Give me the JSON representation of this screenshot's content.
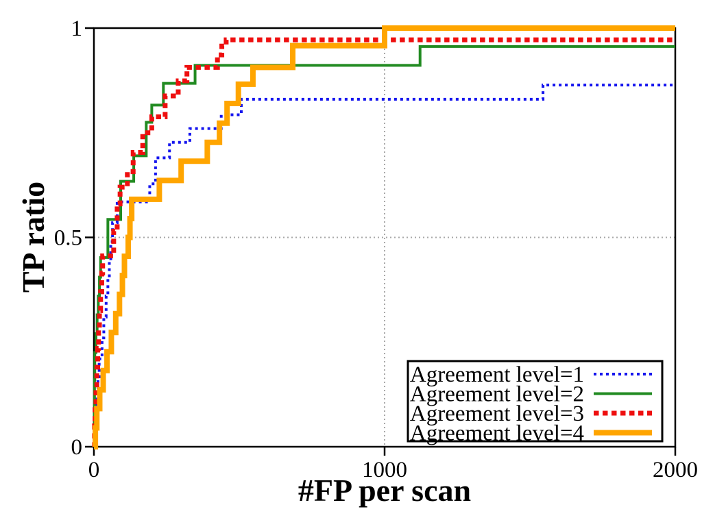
{
  "background": "#ffffff",
  "frame_color": "#000000",
  "grid_color": "#a8a8a8",
  "chart_data": {
    "type": "line",
    "subtype": "step-curves-froc",
    "title": "",
    "xlabel": "#FP per scan",
    "ylabel": "TP ratio",
    "xlim": [
      0,
      2000
    ],
    "ylim": [
      0,
      1
    ],
    "grid": {
      "x_values": [
        1000
      ],
      "y_values": [
        0.5
      ],
      "style": "dotted"
    },
    "xticks": [
      {
        "value": 0,
        "label": "0"
      },
      {
        "value": 1000,
        "label": "1000"
      },
      {
        "value": 2000,
        "label": "2000"
      }
    ],
    "yticks": [
      {
        "value": 0,
        "label": "0"
      },
      {
        "value": 0.5,
        "label": "0.5"
      },
      {
        "value": 1,
        "label": "1"
      }
    ],
    "legend_position": "bottom-right",
    "series": [
      {
        "label": "Agreement level=1",
        "color": "#1515ee",
        "line": "dotted",
        "width": 4,
        "dash": "4 5",
        "steps": [
          [
            0,
            0
          ],
          [
            3,
            0.042
          ],
          [
            6,
            0.083
          ],
          [
            10,
            0.125
          ],
          [
            14,
            0.167
          ],
          [
            18,
            0.21
          ],
          [
            28,
            0.26
          ],
          [
            34,
            0.31
          ],
          [
            42,
            0.36
          ],
          [
            48,
            0.405
          ],
          [
            53,
            0.445
          ],
          [
            58,
            0.49
          ],
          [
            64,
            0.535
          ],
          [
            80,
            0.585
          ],
          [
            192,
            0.628
          ],
          [
            212,
            0.69
          ],
          [
            260,
            0.727
          ],
          [
            330,
            0.76
          ],
          [
            438,
            0.793
          ],
          [
            507,
            0.83
          ],
          [
            1545,
            0.864
          ]
        ]
      },
      {
        "label": "Agreement level=2",
        "color": "#228b22",
        "line": "solid",
        "width": 4,
        "dash": "",
        "steps": [
          [
            0,
            0
          ],
          [
            1,
            0.09
          ],
          [
            2,
            0.16
          ],
          [
            3,
            0.225
          ],
          [
            7,
            0.27
          ],
          [
            11,
            0.315
          ],
          [
            15,
            0.36
          ],
          [
            19,
            0.405
          ],
          [
            23,
            0.452
          ],
          [
            48,
            0.543
          ],
          [
            92,
            0.634
          ],
          [
            137,
            0.695
          ],
          [
            180,
            0.775
          ],
          [
            199,
            0.816
          ],
          [
            239,
            0.868
          ],
          [
            348,
            0.911
          ],
          [
            1122,
            0.956
          ]
        ]
      },
      {
        "label": "Agreement level=3",
        "color": "#ee0f0f",
        "line": "dotted",
        "width": 7,
        "dash": "7.5 5.5",
        "steps": [
          [
            0,
            0
          ],
          [
            2,
            0.05
          ],
          [
            4,
            0.095
          ],
          [
            7,
            0.14
          ],
          [
            10,
            0.19
          ],
          [
            13,
            0.235
          ],
          [
            16,
            0.28
          ],
          [
            19,
            0.325
          ],
          [
            23,
            0.37
          ],
          [
            27,
            0.415
          ],
          [
            30,
            0.456
          ],
          [
            68,
            0.515
          ],
          [
            80,
            0.58
          ],
          [
            90,
            0.62
          ],
          [
            115,
            0.657
          ],
          [
            135,
            0.703
          ],
          [
            168,
            0.75
          ],
          [
            199,
            0.788
          ],
          [
            245,
            0.838
          ],
          [
            290,
            0.874
          ],
          [
            320,
            0.906
          ],
          [
            425,
            0.936
          ],
          [
            440,
            0.957
          ],
          [
            455,
            0.972
          ]
        ]
      },
      {
        "label": "Agreement level=4",
        "color": "#ffa500",
        "line": "solid",
        "width": 8,
        "dash": "",
        "steps": [
          [
            0,
            0
          ],
          [
            5,
            0.045
          ],
          [
            10,
            0.091
          ],
          [
            20,
            0.136
          ],
          [
            32,
            0.182
          ],
          [
            45,
            0.227
          ],
          [
            60,
            0.273
          ],
          [
            75,
            0.318
          ],
          [
            88,
            0.364
          ],
          [
            98,
            0.409
          ],
          [
            105,
            0.455
          ],
          [
            118,
            0.5
          ],
          [
            124,
            0.545
          ],
          [
            130,
            0.591
          ],
          [
            225,
            0.636
          ],
          [
            300,
            0.682
          ],
          [
            390,
            0.727
          ],
          [
            432,
            0.773
          ],
          [
            458,
            0.82
          ],
          [
            497,
            0.866
          ],
          [
            547,
            0.906
          ],
          [
            684,
            0.958
          ],
          [
            1000,
            1.0
          ]
        ]
      }
    ]
  }
}
